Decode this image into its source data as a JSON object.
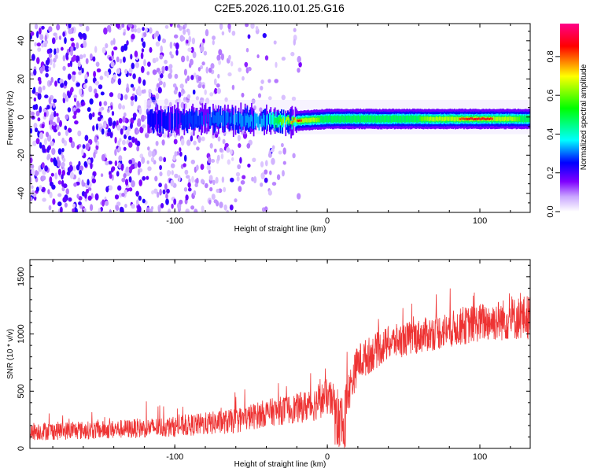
{
  "title": "C2E5.2026.110.01.25.G16",
  "chart_data": [
    {
      "type": "heatmap",
      "title": "C2E5.2026.110.01.25.G16",
      "xlabel": "Height of straight line (km)",
      "ylabel": "Frequency (Hz)",
      "xlim": [
        -195,
        133
      ],
      "ylim": [
        -50,
        49
      ],
      "xticks": [
        -100,
        0,
        100
      ],
      "xtick_labels": [
        "-100",
        "0",
        "100"
      ],
      "yticks": [
        -40,
        -20,
        0,
        20,
        40
      ],
      "ytick_labels": [
        "-40",
        "-20",
        "0",
        "20",
        "40"
      ],
      "colorbar": {
        "label": "Normalized spectral amplitude",
        "range": [
          0,
          0.97
        ],
        "ticks": [
          0,
          0.2,
          0.4,
          0.6,
          0.8
        ],
        "tick_labels": [
          "0.0",
          "0.2",
          "0.4",
          "0.6",
          "0.8"
        ],
        "colormap": [
          "#ffffff",
          "#7f00ff",
          "#0000ff",
          "#00ffff",
          "#00ff00",
          "#ffff00",
          "#ff0000",
          "#ff00aa"
        ]
      },
      "signal_band": {
        "description_x": [
          -118,
          -80,
          -40,
          -20,
          0,
          20,
          60,
          100,
          133
        ],
        "center_freq_hz": [
          -2,
          -1,
          -2,
          -2,
          -1,
          -1,
          -1,
          -1,
          -1
        ],
        "peak_amplitude": [
          0.25,
          0.3,
          0.35,
          0.9,
          0.5,
          0.55,
          0.6,
          0.95,
          0.5
        ],
        "noise_edge_x": -20
      }
    },
    {
      "type": "line",
      "xlabel": "Height of straight line (km)",
      "ylabel": "SNR (10 * v/v)",
      "xlim": [
        -195,
        133
      ],
      "ylim": [
        0,
        1650
      ],
      "xticks": [
        -100,
        0,
        100
      ],
      "xtick_labels": [
        "-100",
        "0",
        "100"
      ],
      "yticks": [
        0,
        500,
        1000,
        1500
      ],
      "ytick_labels": [
        "0",
        "500",
        "1000",
        "1500"
      ],
      "series": [
        {
          "name": "SNR",
          "color": "#ee3333",
          "envelope_x": [
            -195,
            -150,
            -100,
            -60,
            -40,
            -20,
            -10,
            0,
            10,
            20,
            40,
            60,
            100,
            133
          ],
          "envelope_mean": [
            150,
            160,
            190,
            240,
            310,
            350,
            380,
            450,
            320,
            750,
            920,
            980,
            1100,
            1150
          ],
          "envelope_spread": [
            80,
            80,
            90,
            110,
            120,
            130,
            150,
            160,
            180,
            170,
            150,
            150,
            170,
            200
          ]
        }
      ]
    }
  ]
}
